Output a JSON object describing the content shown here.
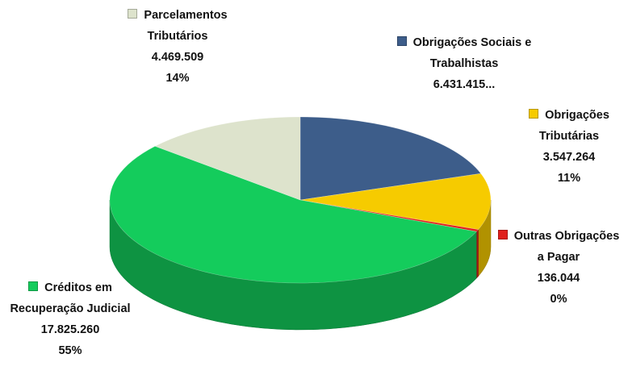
{
  "chart_data": {
    "type": "pie3d",
    "categories": [
      "Obrigações Sociais e Trabalhistas",
      "Obrigações Tributárias",
      "Outras Obrigações a Pagar",
      "Créditos em Recuperação Judicial",
      "Parcelamentos Tributários"
    ],
    "values": [
      6431415,
      3547264,
      136044,
      17825260,
      4469509
    ],
    "value_labels": [
      "6.431.415...",
      "3.547.264",
      "136.044",
      "17.825.260",
      "4.469.509"
    ],
    "percent_labels": [
      null,
      "11%",
      "0%",
      "55%",
      "14%"
    ],
    "colors": [
      "#3d5d8a",
      "#f6cb00",
      "#e0201c",
      "#14cc5c",
      "#dde3cc"
    ]
  }
}
